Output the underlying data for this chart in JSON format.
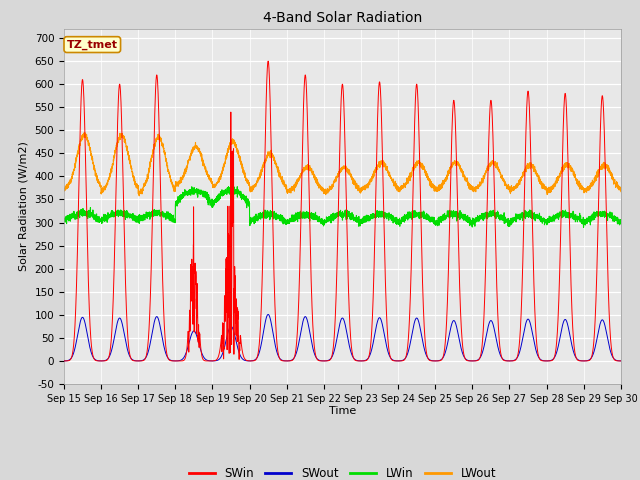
{
  "title": "4-Band Solar Radiation",
  "xlabel": "Time",
  "ylabel": "Solar Radiation (W/m2)",
  "ylim": [
    -50,
    720
  ],
  "yticks": [
    -50,
    0,
    50,
    100,
    150,
    200,
    250,
    300,
    350,
    400,
    450,
    500,
    550,
    600,
    650,
    700
  ],
  "annotation_text": "TZ_tmet",
  "annotation_bg": "#ffffcc",
  "annotation_border": "#cc8800",
  "fig_bg": "#d8d8d8",
  "plot_bg": "#e8e8e8",
  "colors": {
    "SWin": "#ff0000",
    "SWout": "#0000cc",
    "LWin": "#00dd00",
    "LWout": "#ff9900"
  },
  "n_days": 15,
  "start_day": 15,
  "end_day": 30
}
